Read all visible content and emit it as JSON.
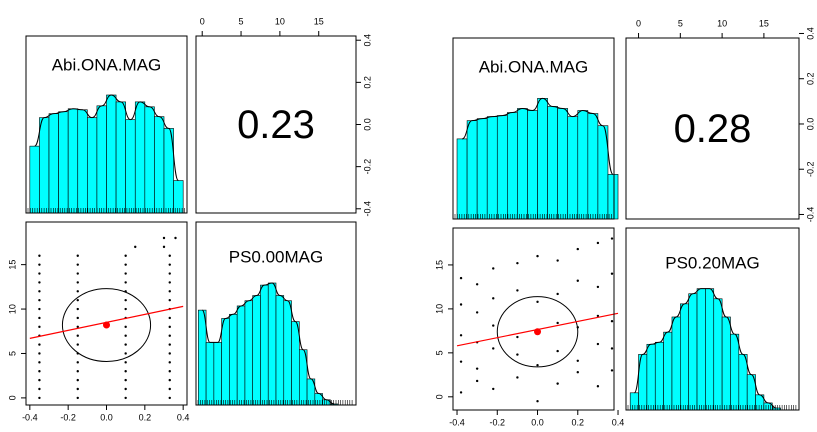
{
  "chart_data": [
    {
      "type": "pairs",
      "variables": [
        "Abi.ONA.MAG",
        "PS0.00MAG"
      ],
      "correlation": 0.23,
      "color": "#00ffff",
      "x1lim": [
        -0.42,
        0.42
      ],
      "x1ticks": [
        -0.4,
        -0.2,
        {
          "value": 0,
          "label": "0.0"
        },
        0.2,
        0.4
      ],
      "x2lim": [
        -0.8,
        19.8
      ],
      "x2ticks": [
        0,
        5,
        10,
        15
      ],
      "hist1": {
        "bins": [
          -0.4,
          -0.35,
          -0.3,
          -0.25,
          -0.2,
          -0.15,
          -0.1,
          -0.05,
          0,
          0.05,
          0.1,
          0.15,
          0.2,
          0.25,
          0.3,
          0.35,
          0.4
        ],
        "counts": [
          68,
          97,
          101,
          103,
          106,
          105,
          97,
          109,
          120,
          113,
          95,
          113,
          108,
          98,
          86,
          33
        ]
      },
      "hist2": {
        "bins": [
          -0.5,
          0.5,
          1.5,
          2.5,
          3.5,
          4.5,
          5.5,
          6.5,
          7.5,
          8.5,
          9.5,
          10.5,
          11.5,
          12.5,
          13.5,
          14.5,
          15.5,
          16.5,
          17.5
        ],
        "counts": [
          91,
          60,
          60,
          83,
          87,
          95,
          100,
          105,
          115,
          117,
          105,
          100,
          80,
          53,
          25,
          11,
          5,
          1
        ]
      },
      "scatter": {
        "x": [
          -0.35,
          -0.15,
          0.1,
          0.33,
          -0.35,
          -0.15,
          0.1,
          0.33,
          -0.35,
          -0.15,
          0.1,
          0.33,
          -0.35,
          -0.15,
          0.1,
          0.33,
          -0.35,
          -0.15,
          0.1,
          0.33,
          -0.35,
          -0.15,
          0.1,
          0.33,
          -0.35,
          -0.15,
          0.1,
          0.33,
          -0.35,
          -0.15,
          0.1,
          0.33,
          -0.35,
          -0.15,
          0.1,
          0.33,
          -0.35,
          -0.15,
          0.1,
          0.33,
          -0.35,
          -0.15,
          0.1,
          0.33,
          -0.35,
          -0.15,
          0.1,
          0.33,
          -0.35,
          -0.15,
          0.1,
          0.33,
          -0.35,
          -0.15,
          0.1,
          0.33,
          -0.35,
          -0.15,
          0.1,
          0.33,
          -0.35,
          -0.15,
          0.1,
          0.33,
          -0.35,
          -0.15,
          0.1,
          0.33,
          0.15,
          0.3,
          0.3,
          0.36
        ],
        "y": [
          0,
          0,
          0,
          0,
          1,
          1,
          1,
          1,
          2,
          2,
          2,
          2,
          3,
          3,
          3,
          3,
          4,
          4,
          4,
          4,
          5,
          5,
          5,
          5,
          6,
          6,
          6,
          6,
          7,
          7,
          7,
          7,
          8,
          8,
          8,
          8,
          9,
          9,
          9,
          9,
          10,
          10,
          10,
          10,
          11,
          11,
          11,
          11,
          12,
          12,
          12,
          12,
          13,
          13,
          13,
          13,
          14,
          14,
          14,
          14,
          15,
          15,
          15,
          15,
          16,
          16,
          16,
          16,
          17,
          17,
          18,
          18
        ]
      },
      "fit": {
        "x": [
          -0.4,
          0.4
        ],
        "y": [
          6.7,
          10.3
        ]
      },
      "mean": {
        "x": 0,
        "y": 8.2
      },
      "ellipse": {
        "cx": 0,
        "cy": 8.2,
        "rx": 0.23,
        "ry": 4.1
      }
    },
    {
      "type": "pairs",
      "variables": [
        "Abi.ONA.MAG",
        "PS0.20MAG"
      ],
      "correlation": 0.28,
      "color": "#00ffff",
      "x1lim": [
        -0.42,
        0.38
      ],
      "x1ticks": [
        -0.4,
        -0.2,
        {
          "value": 0,
          "label": "0.0"
        },
        0.2,
        0.4
      ],
      "x2lim": [
        -1.5,
        19.2
      ],
      "x2ticks": [
        0,
        5,
        10,
        15
      ],
      "hist1": {
        "bins": [
          -0.4,
          -0.35,
          -0.3,
          -0.25,
          -0.2,
          -0.15,
          -0.1,
          -0.05,
          0,
          0.05,
          0.1,
          0.15,
          0.2,
          0.25,
          0.3,
          0.35,
          0.4
        ],
        "counts": [
          79,
          97,
          99,
          101,
          102,
          105,
          109,
          107,
          119,
          111,
          109,
          101,
          107,
          104,
          92,
          44
        ]
      },
      "hist2": {
        "bins": [
          -1,
          0,
          1,
          2,
          3,
          4,
          5,
          6,
          7,
          8,
          9,
          10,
          11,
          12,
          13,
          14,
          15,
          16,
          17
        ],
        "counts": [
          17,
          55,
          65,
          67,
          77,
          92,
          105,
          115,
          120,
          120,
          110,
          92,
          75,
          55,
          35,
          15,
          7,
          2
        ]
      },
      "scatter": {
        "x": [
          -0.38,
          -0.3,
          -0.22,
          -0.1,
          0,
          0.1,
          0.2,
          0.3,
          0.37,
          -0.38,
          -0.3,
          -0.22,
          -0.1,
          0,
          0.1,
          0.2,
          0.3,
          0.37,
          -0.38,
          -0.3,
          -0.22,
          -0.1,
          0,
          0.1,
          0.2,
          0.3,
          0.37,
          -0.38,
          -0.3,
          -0.22,
          -0.1,
          0,
          0.1,
          0.2,
          0.3,
          0.37,
          -0.38,
          -0.3,
          -0.22,
          -0.1,
          0,
          0.1,
          0.2,
          0.3,
          0.37
        ],
        "y": [
          0.5,
          1.8,
          0.9,
          2.2,
          -0.5,
          1.5,
          2.8,
          1.2,
          3,
          4,
          3.2,
          5.5,
          4.8,
          3.6,
          5.2,
          4.1,
          6,
          5.5,
          7,
          6.2,
          8.1,
          6.8,
          7.5,
          8.4,
          7.9,
          9.2,
          8.6,
          10.5,
          9.6,
          11.2,
          12.1,
          10.8,
          11.7,
          13.2,
          12.5,
          14,
          13.5,
          12.8,
          14.6,
          15.2,
          16,
          15.5,
          16.8,
          17.5,
          18
        ]
      },
      "fit": {
        "x": [
          -0.4,
          0.4
        ],
        "y": [
          5.8,
          9.5
        ]
      },
      "mean": {
        "x": 0,
        "y": 7.4
      },
      "ellipse": {
        "cx": 0,
        "cy": 7.4,
        "rx": 0.2,
        "ry": 4
      }
    }
  ]
}
